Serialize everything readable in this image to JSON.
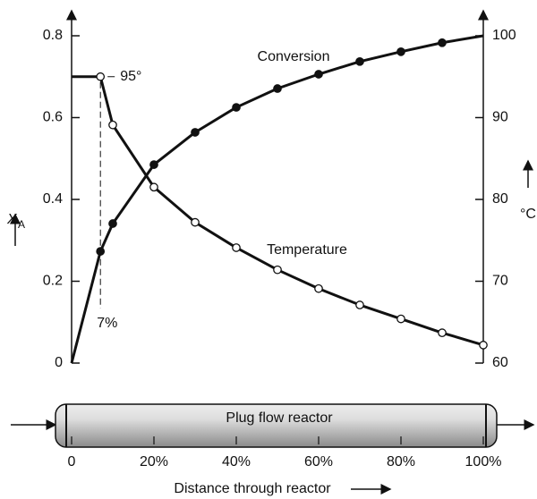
{
  "chart_data": {
    "type": "line",
    "x_label": "Distance through reactor",
    "y_label": "X",
    "y_label_sub": "A",
    "y2_label": "°C",
    "reactor_label": "Plug flow reactor",
    "x": [
      0,
      7,
      10,
      20,
      30,
      40,
      50,
      60,
      70,
      80,
      90,
      100
    ],
    "series": [
      {
        "name": "Conversion",
        "color": "#111111",
        "values": [
          0,
          0.273,
          0.341,
          0.485,
          0.564,
          0.625,
          0.671,
          0.706,
          0.737,
          0.761,
          0.783,
          0.8
        ]
      },
      {
        "name": "Temperature",
        "color": "#111111",
        "axis": "y2",
        "values": [
          95,
          95,
          89.1,
          81.5,
          77.2,
          74.1,
          71.4,
          69.1,
          67.1,
          65.4,
          63.7,
          62.2
        ]
      }
    ],
    "xlim": [
      0,
      100
    ],
    "xticks": [
      0,
      {
        "value": 20,
        "label": "20%"
      },
      {
        "value": 40,
        "label": "40%"
      },
      {
        "value": 60,
        "label": "60%"
      },
      {
        "value": 80,
        "label": "80%"
      },
      {
        "value": 100,
        "label": "100%"
      }
    ],
    "ylim": [
      0,
      0.8
    ],
    "yticks": [
      0,
      0.2,
      0.4,
      0.6,
      0.8
    ],
    "y2lim": [
      60,
      100
    ],
    "y2ticks": [
      60,
      70,
      80,
      90,
      100
    ],
    "annotations": [
      "95°",
      "7%"
    ]
  }
}
